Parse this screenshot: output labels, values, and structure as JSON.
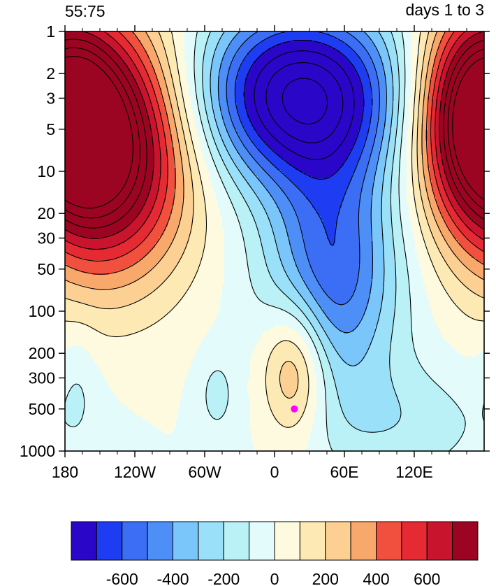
{
  "chart_data": {
    "type": "heatmap",
    "title_left": "55:75",
    "title_right": "days 1 to 3",
    "x_ticks": [
      {
        "lon": -180,
        "label": "180"
      },
      {
        "lon": -120,
        "label": "120W"
      },
      {
        "lon": -60,
        "label": "60W"
      },
      {
        "lon": 0,
        "label": "0"
      },
      {
        "lon": 60,
        "label": "60E"
      },
      {
        "lon": 120,
        "label": "120E"
      }
    ],
    "xlim": [
      -180,
      180
    ],
    "y_ticks": [
      {
        "p": 1,
        "label": "1"
      },
      {
        "p": 2,
        "label": "2"
      },
      {
        "p": 3,
        "label": "3"
      },
      {
        "p": 5,
        "label": "5"
      },
      {
        "p": 10,
        "label": "10"
      },
      {
        "p": 20,
        "label": "20"
      },
      {
        "p": 30,
        "label": "30"
      },
      {
        "p": 50,
        "label": "50"
      },
      {
        "p": 100,
        "label": "100"
      },
      {
        "p": 200,
        "label": "200"
      },
      {
        "p": 300,
        "label": "300"
      },
      {
        "p": 500,
        "label": "500"
      },
      {
        "p": 1000,
        "label": "1000"
      }
    ],
    "ylim": [
      1000,
      1
    ],
    "yscale": "log",
    "colorbar": {
      "levels": [
        -700,
        -600,
        -500,
        -400,
        -300,
        -200,
        -100,
        0,
        100,
        200,
        300,
        400,
        500,
        600,
        700
      ],
      "colors": [
        "#2a06c9",
        "#1e3df2",
        "#3b6ef5",
        "#4d8ff7",
        "#7ac6fa",
        "#9ae0f9",
        "#b9f1f7",
        "#e4fbfb",
        "#fdfadf",
        "#fce9b3",
        "#fcd093",
        "#f9a86c",
        "#f2503e",
        "#e52a34",
        "#c9142d",
        "#9c0522"
      ],
      "labels": [
        "-600",
        "-400",
        "-200",
        "0",
        "200",
        "400",
        "600"
      ],
      "label_values": [
        -600,
        -400,
        -200,
        0,
        200,
        400,
        600
      ]
    },
    "marker": {
      "lon": 17,
      "p": 500,
      "color": "#ff00ff"
    }
  }
}
